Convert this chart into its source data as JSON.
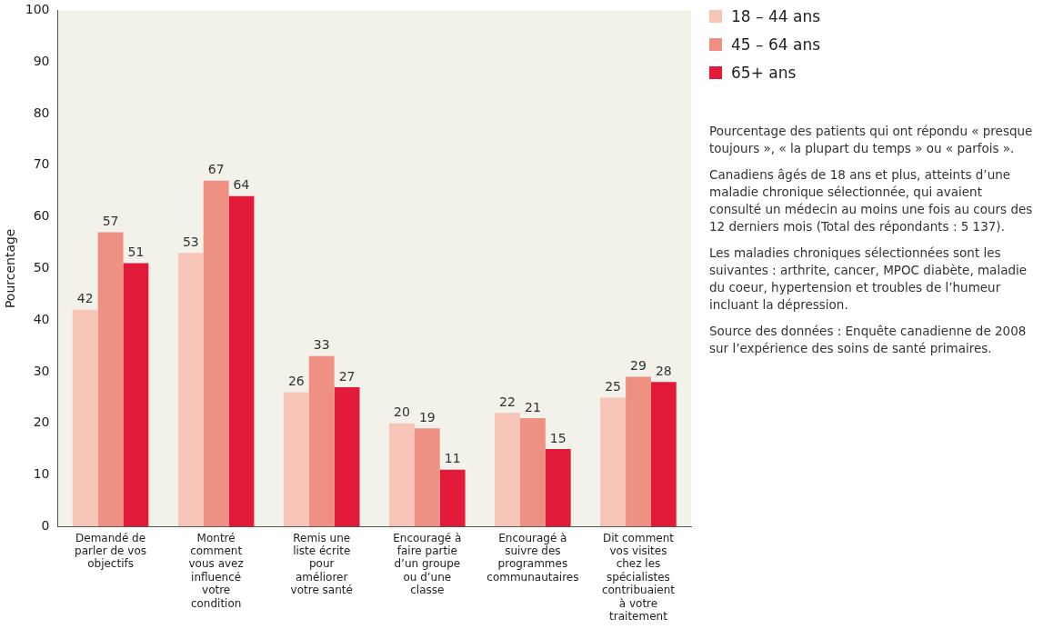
{
  "chart_data": {
    "type": "bar",
    "ylabel": "Pourcentage",
    "categories": [
      "Demandé de parler de vos objectifs",
      "Montré comment vous avez influencé votre condition",
      "Remis une liste écrite pour améliorer votre santé",
      "Encouragé à faire partie d’un groupe ou d’une classe",
      "Encouragé à suivre des programmes communautaires",
      "Dit comment vos visites chez les spécialistes contribuaient à votre traitement"
    ],
    "series": [
      {
        "name": "18 – 44 ans",
        "color": "#f7c5b7",
        "values": [
          42,
          53,
          26,
          20,
          22,
          25
        ]
      },
      {
        "name": "45 – 64 ans",
        "color": "#ef9182",
        "values": [
          57,
          67,
          33,
          19,
          21,
          29
        ]
      },
      {
        "name": "65+ ans",
        "color": "#e31b3a",
        "values": [
          51,
          64,
          27,
          11,
          15,
          28
        ]
      }
    ],
    "ylim": [
      0,
      100
    ],
    "yticks": [
      0,
      10,
      20,
      30,
      40,
      50,
      60,
      70,
      80,
      90,
      100
    ],
    "grid": false,
    "legend": "right",
    "data_labels": true,
    "annotations": [
      "Pourcentage des patients qui ont répondu « presque toujours », « la plupart du temps » ou « parfois ».",
      "Canadiens âgés de 18 ans et plus, atteints d’une maladie chronique sélectionnée, qui avaient consulté un médecin au moins une fois au cours des 12 derniers mois (Total des répondants : 5 137).",
      "Les maladies chroniques sélectionnées sont les suivantes : arthrite, cancer, MPOC diabète, maladie du coeur, hypertension et troubles de l’humeur incluant la dépression.",
      "Source des données : Enquête canadienne de 2008 sur l’expérience des soins de santé primaires."
    ]
  }
}
